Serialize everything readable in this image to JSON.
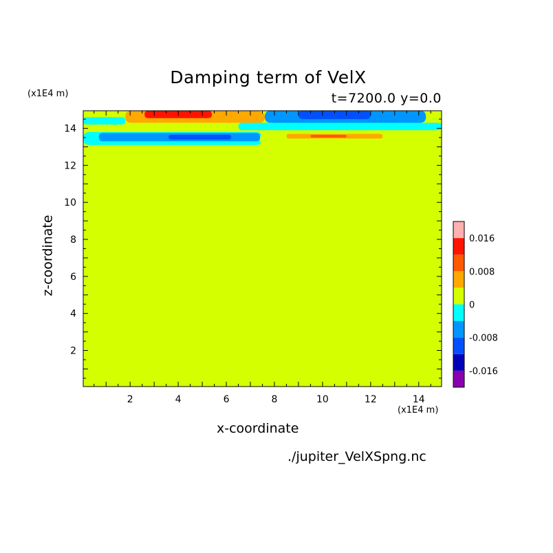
{
  "chart_data": {
    "type": "heatmap",
    "title": "Damping term of VelX",
    "subtitle": "t=7200.0 y=0.0",
    "xlabel": "x-coordinate",
    "ylabel": "z-coordinate",
    "x_unit": "(x1E4 m)",
    "y_unit": "(x1E4 m)",
    "xlim": [
      0.05,
      14.95
    ],
    "ylim": [
      0.05,
      14.95
    ],
    "x_ticks": [
      "2",
      "4",
      "6",
      "8",
      "10",
      "12",
      "14"
    ],
    "y_ticks": [
      "2",
      "4",
      "6",
      "8",
      "10",
      "12",
      "14"
    ],
    "background_value": 0,
    "colorbar": {
      "levels": [
        -0.02,
        -0.016,
        -0.012,
        -0.008,
        -0.004,
        0,
        0.004,
        0.008,
        0.012,
        0.016,
        0.02
      ],
      "colors": [
        "#8a00b0",
        "#0000b8",
        "#0050ff",
        "#0096ff",
        "#00ffff",
        "#d4ff00",
        "#ffa800",
        "#ff5a00",
        "#ff1400",
        "#ffb0b0"
      ],
      "tick_labels": [
        "-0.016",
        "-0.008",
        "0",
        "0.008",
        "0.016"
      ],
      "tick_values": [
        -0.016,
        -0.008,
        0,
        0.008,
        0.016
      ]
    },
    "bands": [
      {
        "value": 0.006,
        "x": [
          1.8,
          7.5
        ],
        "z": [
          14.3,
          14.95
        ]
      },
      {
        "value": 0.012,
        "x": [
          2.6,
          5.4
        ],
        "z": [
          14.55,
          14.95
        ]
      },
      {
        "value": 0.006,
        "x": [
          7.0,
          7.6
        ],
        "z": [
          14.3,
          14.9
        ]
      },
      {
        "value": -0.006,
        "x": [
          7.6,
          14.3
        ],
        "z": [
          14.3,
          14.95
        ]
      },
      {
        "value": -0.01,
        "x": [
          9.0,
          12.0
        ],
        "z": [
          14.5,
          14.95
        ]
      },
      {
        "value": -0.002,
        "x": [
          0.05,
          1.8
        ],
        "z": [
          14.2,
          14.6
        ]
      },
      {
        "value": -0.002,
        "x": [
          6.5,
          14.95
        ],
        "z": [
          13.9,
          14.3
        ]
      },
      {
        "value": 0.002,
        "x": [
          0.05,
          2.5
        ],
        "z": [
          13.8,
          14.2
        ]
      },
      {
        "value": -0.002,
        "x": [
          0.05,
          7.5
        ],
        "z": [
          13.1,
          13.8
        ]
      },
      {
        "value": -0.006,
        "x": [
          0.7,
          7.4
        ],
        "z": [
          13.3,
          13.75
        ]
      },
      {
        "value": -0.01,
        "x": [
          3.6,
          6.2
        ],
        "z": [
          13.4,
          13.65
        ]
      },
      {
        "value": 0.002,
        "x": [
          7.4,
          14.4
        ],
        "z": [
          13.0,
          13.8
        ]
      },
      {
        "value": 0.006,
        "x": [
          8.5,
          12.5
        ],
        "z": [
          13.45,
          13.7
        ]
      },
      {
        "value": 0.01,
        "x": [
          9.5,
          11.0
        ],
        "z": [
          13.5,
          13.65
        ]
      }
    ]
  },
  "source_file": "./jupiter_VelXSpng.nc"
}
